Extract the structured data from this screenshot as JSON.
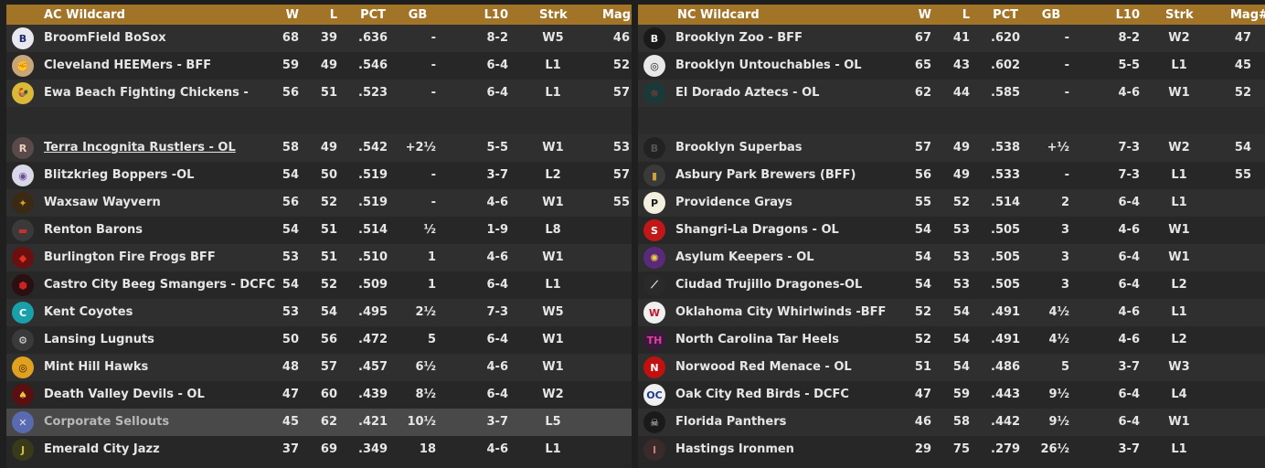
{
  "ac": {
    "title": "AC  Wildcard",
    "headers": {
      "w": "W",
      "l": "L",
      "pct": "PCT",
      "gb": "GB",
      "l10": "L10",
      "strk": "Strk",
      "mag": "Mag#"
    },
    "rows": [
      {
        "team": "BroomField BoSox",
        "w": "68",
        "l": "39",
        "pct": ".636",
        "gb": "-",
        "l10": "8-2",
        "strk": "W5",
        "mag": "46",
        "logo": "B",
        "logo_bg": "#e8e8f0",
        "logo_fg": "#1c2a6b"
      },
      {
        "team": "Cleveland HEEMers - BFF",
        "w": "59",
        "l": "49",
        "pct": ".546",
        "gb": "-",
        "l10": "6-4",
        "strk": "L1",
        "mag": "52",
        "logo": "✊",
        "logo_bg": "#c9a57a",
        "logo_fg": "#5a3a1a"
      },
      {
        "team": "Ewa Beach Fighting Chickens -",
        "w": "56",
        "l": "51",
        "pct": ".523",
        "gb": "-",
        "l10": "6-4",
        "strk": "L1",
        "mag": "57",
        "logo": "🐓",
        "logo_bg": "#d9b83a",
        "logo_fg": "#3a2a00"
      },
      {
        "blank": true
      },
      {
        "team": "Terra Incognita Rustlers - OL",
        "w": "58",
        "l": "49",
        "pct": ".542",
        "gb": "+2½",
        "l10": "5-5",
        "strk": "W1",
        "mag": "53",
        "logo": "R",
        "logo_bg": "#5a4a4a",
        "logo_fg": "#f0d0c0",
        "underline": true
      },
      {
        "team": "Blitzkrieg Boppers -OL",
        "w": "54",
        "l": "50",
        "pct": ".519",
        "gb": "-",
        "l10": "3-7",
        "strk": "L2",
        "mag": "57",
        "logo": "◉",
        "logo_bg": "#d8d8e8",
        "logo_fg": "#6a4a9a"
      },
      {
        "team": "Waxsaw Wayvern",
        "w": "56",
        "l": "52",
        "pct": ".519",
        "gb": "-",
        "l10": "4-6",
        "strk": "W1",
        "mag": "55",
        "logo": "✦",
        "logo_bg": "#3a2a14",
        "logo_fg": "#e0a020"
      },
      {
        "team": "Renton Barons",
        "w": "54",
        "l": "51",
        "pct": ".514",
        "gb": "½",
        "l10": "1-9",
        "strk": "L8",
        "mag": "",
        "logo": "▬",
        "logo_bg": "#3a3a3a",
        "logo_fg": "#c83030"
      },
      {
        "team": "Burlington Fire Frogs BFF",
        "w": "53",
        "l": "51",
        "pct": ".510",
        "gb": "1",
        "l10": "4-6",
        "strk": "W1",
        "mag": "",
        "logo": "◆",
        "logo_bg": "#6a1010",
        "logo_fg": "#e83020"
      },
      {
        "team": "Castro City Beeg Smangers - DCFC",
        "w": "54",
        "l": "52",
        "pct": ".509",
        "gb": "1",
        "l10": "6-4",
        "strk": "L1",
        "mag": "",
        "logo": "⬢",
        "logo_bg": "#2a1010",
        "logo_fg": "#d02020"
      },
      {
        "team": "Kent Coyotes",
        "w": "53",
        "l": "54",
        "pct": ".495",
        "gb": "2½",
        "l10": "7-3",
        "strk": "W5",
        "mag": "",
        "logo": "C",
        "logo_bg": "#1aa0a8",
        "logo_fg": "#ffffff"
      },
      {
        "team": "Lansing Lugnuts",
        "w": "50",
        "l": "56",
        "pct": ".472",
        "gb": "5",
        "l10": "6-4",
        "strk": "W1",
        "mag": "",
        "logo": "⚙",
        "logo_bg": "#3a3a3a",
        "logo_fg": "#e0e0e0"
      },
      {
        "team": "Mint Hill Hawks",
        "w": "48",
        "l": "57",
        "pct": ".457",
        "gb": "6½",
        "l10": "4-6",
        "strk": "W1",
        "mag": "",
        "logo": "◎",
        "logo_bg": "#e0a020",
        "logo_fg": "#3a2000"
      },
      {
        "team": "Death Valley Devils - OL",
        "w": "47",
        "l": "60",
        "pct": ".439",
        "gb": "8½",
        "l10": "6-4",
        "strk": "W2",
        "mag": "",
        "logo": "♠",
        "logo_bg": "#5a1010",
        "logo_fg": "#f0c040"
      },
      {
        "team": "Corporate Sellouts",
        "w": "45",
        "l": "62",
        "pct": ".421",
        "gb": "10½",
        "l10": "3-7",
        "strk": "L5",
        "mag": "",
        "logo": "✕",
        "logo_bg": "#5a6ab0",
        "logo_fg": "#e0e0f0",
        "highlight": true
      },
      {
        "team": "Emerald City Jazz",
        "w": "37",
        "l": "69",
        "pct": ".349",
        "gb": "18",
        "l10": "4-6",
        "strk": "L1",
        "mag": "",
        "logo": "J",
        "logo_bg": "#3a3a1a",
        "logo_fg": "#c8c040"
      }
    ]
  },
  "nc": {
    "title": "NC  Wildcard",
    "headers": {
      "w": "W",
      "l": "L",
      "pct": "PCT",
      "gb": "GB",
      "l10": "L10",
      "strk": "Strk",
      "mag": "Mag#"
    },
    "rows": [
      {
        "team": "Brooklyn Zoo - BFF",
        "w": "67",
        "l": "41",
        "pct": ".620",
        "gb": "-",
        "l10": "8-2",
        "strk": "W2",
        "mag": "47",
        "logo": "B",
        "logo_bg": "#1a1a1a",
        "logo_fg": "#f0f0f0"
      },
      {
        "team": "Brooklyn Untouchables - OL",
        "w": "65",
        "l": "43",
        "pct": ".602",
        "gb": "-",
        "l10": "5-5",
        "strk": "L1",
        "mag": "45",
        "logo": "◎",
        "logo_bg": "#e8e8e8",
        "logo_fg": "#1a1a1a"
      },
      {
        "team": "El Dorado Aztecs - OL",
        "w": "62",
        "l": "44",
        "pct": ".585",
        "gb": "-",
        "l10": "4-6",
        "strk": "W1",
        "mag": "52",
        "logo": "☼",
        "logo_bg": "#1a3a3a",
        "logo_fg": "#e04030"
      },
      {
        "blank": true
      },
      {
        "team": "Brooklyn Superbas",
        "w": "57",
        "l": "49",
        "pct": ".538",
        "gb": "+½",
        "l10": "7-3",
        "strk": "W2",
        "mag": "54",
        "logo": "B",
        "logo_bg": "#222222",
        "logo_fg": "#555555"
      },
      {
        "team": "Asbury Park Brewers (BFF)",
        "w": "56",
        "l": "49",
        "pct": ".533",
        "gb": "-",
        "l10": "7-3",
        "strk": "L1",
        "mag": "55",
        "logo": "▮",
        "logo_bg": "#3a3a3a",
        "logo_fg": "#d0a040"
      },
      {
        "team": "Providence Grays",
        "w": "55",
        "l": "52",
        "pct": ".514",
        "gb": "2",
        "l10": "6-4",
        "strk": "L1",
        "mag": "",
        "logo": "P",
        "logo_bg": "#f4f0e0",
        "logo_fg": "#1a1a1a"
      },
      {
        "team": "Shangri-La Dragons - OL",
        "w": "54",
        "l": "53",
        "pct": ".505",
        "gb": "3",
        "l10": "4-6",
        "strk": "W1",
        "mag": "",
        "logo": "S",
        "logo_bg": "#c01818",
        "logo_fg": "#ffffff"
      },
      {
        "team": "Asylum Keepers - OL",
        "w": "54",
        "l": "53",
        "pct": ".505",
        "gb": "3",
        "l10": "6-4",
        "strk": "W1",
        "mag": "",
        "logo": "✺",
        "logo_bg": "#5a2a7a",
        "logo_fg": "#f0d040"
      },
      {
        "team": "Ciudad Trujillo Dragones-OL",
        "w": "54",
        "l": "53",
        "pct": ".505",
        "gb": "3",
        "l10": "6-4",
        "strk": "L2",
        "mag": "",
        "logo": "⟋",
        "logo_bg": "#2a2a2a",
        "logo_fg": "#f0f0f0"
      },
      {
        "team": "Oklahoma City Whirlwinds -BFF",
        "w": "52",
        "l": "54",
        "pct": ".491",
        "gb": "4½",
        "l10": "4-6",
        "strk": "L1",
        "mag": "",
        "logo": "W",
        "logo_bg": "#f0f0f0",
        "logo_fg": "#c01830"
      },
      {
        "team": "North Carolina Tar Heels",
        "w": "52",
        "l": "54",
        "pct": ".491",
        "gb": "4½",
        "l10": "4-6",
        "strk": "L2",
        "mag": "",
        "logo": "TH",
        "logo_bg": "#3a1a3a",
        "logo_fg": "#e040a0"
      },
      {
        "team": "Norwood Red Menace - OL",
        "w": "51",
        "l": "54",
        "pct": ".486",
        "gb": "5",
        "l10": "3-7",
        "strk": "W3",
        "mag": "",
        "logo": "N",
        "logo_bg": "#c01010",
        "logo_fg": "#ffffff"
      },
      {
        "team": "Oak City Red Birds - DCFC",
        "w": "47",
        "l": "59",
        "pct": ".443",
        "gb": "9½",
        "l10": "6-4",
        "strk": "L4",
        "mag": "",
        "logo": "OC",
        "logo_bg": "#f0f0f0",
        "logo_fg": "#1a3a8a"
      },
      {
        "team": "Florida Panthers",
        "w": "46",
        "l": "58",
        "pct": ".442",
        "gb": "9½",
        "l10": "6-4",
        "strk": "W1",
        "mag": "",
        "logo": "☠",
        "logo_bg": "#1a1a1a",
        "logo_fg": "#e0e0e0"
      },
      {
        "team": "Hastings Ironmen",
        "w": "29",
        "l": "75",
        "pct": ".279",
        "gb": "26½",
        "l10": "3-7",
        "strk": "L1",
        "mag": "",
        "logo": "I",
        "logo_bg": "#3a2a2a",
        "logo_fg": "#c08080"
      }
    ]
  }
}
